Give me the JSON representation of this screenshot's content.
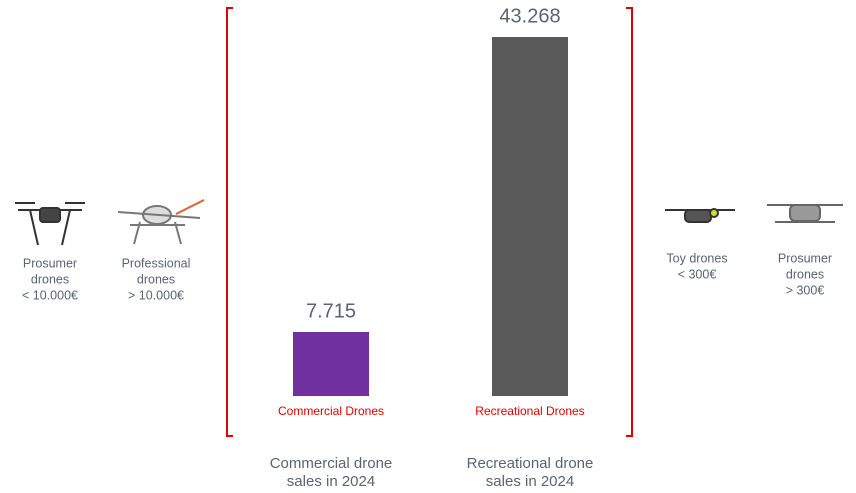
{
  "chart_data": {
    "type": "bar",
    "categories": [
      "Commercial Drones",
      "Recreational Drones"
    ],
    "values": [
      7715,
      43268
    ],
    "value_labels": [
      "7.715",
      "43.268"
    ],
    "colors": [
      "#7030a0",
      "#595959"
    ],
    "category_color": "#e00000",
    "captions": [
      [
        "Commercial drone",
        "sales in 2024"
      ],
      [
        "Recreational drone",
        "sales in 2024"
      ]
    ],
    "left_items": [
      [
        "Prosumer",
        "drones",
        "< 10.000€"
      ],
      [
        "Professional",
        "drones",
        "> 10.000€"
      ]
    ],
    "right_items": [
      [
        "Toy drones",
        "< 300€"
      ],
      [
        "Prosumer",
        "drones",
        "> 300€"
      ]
    ]
  }
}
